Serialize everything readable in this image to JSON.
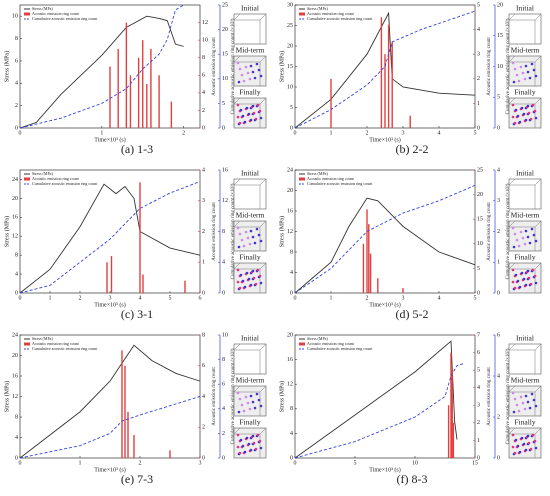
{
  "chart_data": [
    {
      "type": "line",
      "caption": "(a) 1-3",
      "xlabel": "Time×10³ (s)",
      "ylabel": "Stress (MPa)",
      "y2label": "Acoustic emission ring count",
      "y3label": "Cumulative acoustic emission ring count (×10⁵)",
      "insets": [
        "Initial",
        "Mid-term",
        "Finally"
      ],
      "xlim": [
        0,
        2.2
      ],
      "xticks": [
        0,
        1,
        2
      ],
      "ylim": [
        0,
        11
      ],
      "yticks": [
        0,
        2,
        4,
        6,
        8,
        10
      ],
      "y2lim": [
        0,
        14
      ],
      "y2ticks": [
        0,
        2,
        4,
        6,
        8,
        10,
        12
      ],
      "y3lim": [
        0,
        25
      ],
      "y3ticks": [
        0,
        5,
        10,
        15,
        20,
        25
      ],
      "series": [
        {
          "name": "Stress (MPa)",
          "color": "#333333",
          "x": [
            0,
            0.2,
            0.5,
            1,
            1.3,
            1.55,
            1.7,
            1.8,
            1.9,
            2.0
          ],
          "values": [
            0,
            0.5,
            3,
            6.5,
            9,
            10,
            9.8,
            9.6,
            7.5,
            7.3
          ]
        },
        {
          "name": "Acoustic emission ring count",
          "color": "#e04040",
          "axis": "y2",
          "bars": true,
          "x": [
            1.1,
            1.2,
            1.3,
            1.35,
            1.45,
            1.5,
            1.55,
            1.6,
            1.7,
            1.85
          ],
          "values": [
            7,
            9,
            12,
            6,
            8,
            10,
            5,
            9,
            6,
            3
          ]
        },
        {
          "name": "Cumulative acoustic emission ring count",
          "color": "#3344dd",
          "axis": "y3",
          "dashed": true,
          "x": [
            0,
            0.5,
            1,
            1.3,
            1.5,
            1.7,
            1.8,
            1.9,
            2.0
          ],
          "values": [
            0,
            2,
            5,
            8,
            12,
            15,
            18,
            24,
            25
          ]
        }
      ]
    },
    {
      "type": "line",
      "caption": "(b) 2-2",
      "xlabel": "Time×10³ (s)",
      "ylabel": "Stress (MPa)",
      "y2label": "Acoustic emission ring count",
      "y3label": "Cumulative acoustic emission ring count (×10⁵)",
      "insets": [
        "Initial",
        "Mid-term",
        "Finally"
      ],
      "xlim": [
        0,
        5
      ],
      "xticks": [
        0,
        1,
        2,
        3,
        4,
        5
      ],
      "ylim": [
        0,
        30
      ],
      "yticks": [
        0,
        5,
        10,
        15,
        20,
        25,
        30
      ],
      "y2lim": [
        0,
        5
      ],
      "y2ticks": [
        0,
        1,
        2,
        3,
        4,
        5
      ],
      "y3lim": [
        0,
        20
      ],
      "y3ticks": [
        0,
        5,
        10,
        15,
        20
      ],
      "series": [
        {
          "name": "Stress (MPa)",
          "color": "#333333",
          "x": [
            0,
            1,
            2,
            2.6,
            2.7,
            3,
            4,
            5
          ],
          "values": [
            0,
            7,
            18,
            28,
            12,
            10,
            8.5,
            8
          ]
        },
        {
          "name": "Acoustic emission ring count",
          "color": "#e04040",
          "axis": "y2",
          "bars": true,
          "x": [
            1,
            2.4,
            2.5,
            2.6,
            2.7,
            3.2
          ],
          "values": [
            2,
            4.5,
            3,
            4.2,
            3.5,
            0.5
          ]
        },
        {
          "name": "Cumulative acoustic emission ring count",
          "color": "#3344dd",
          "axis": "y3",
          "dashed": true,
          "x": [
            0,
            1,
            2,
            2.5,
            2.7,
            3.5,
            5
          ],
          "values": [
            0,
            3,
            7,
            10,
            14,
            16,
            19
          ]
        }
      ]
    },
    {
      "type": "line",
      "caption": "(c) 3-1",
      "xlabel": "Time×10³ (s)",
      "ylabel": "Stress (MPa)",
      "y2label": "Acoustic emission ring count",
      "y3label": "Cumulative acoustic emission ring count (×10⁵)",
      "insets": [
        "Initial",
        "Mid-term",
        "Finally"
      ],
      "xlim": [
        0,
        6
      ],
      "xticks": [
        0,
        1,
        2,
        3,
        4,
        5,
        6
      ],
      "ylim": [
        0,
        26
      ],
      "yticks": [
        0,
        4,
        8,
        12,
        16,
        20,
        24
      ],
      "y2lim": [
        0,
        4
      ],
      "y2ticks": [
        0,
        1,
        2,
        3,
        4
      ],
      "y3lim": [
        0,
        16
      ],
      "y3ticks": [
        0,
        4,
        8,
        12,
        16
      ],
      "series": [
        {
          "name": "Stress (MPa)",
          "color": "#333333",
          "x": [
            0,
            1,
            2,
            2.8,
            3.2,
            3.5,
            3.8,
            4,
            5,
            6
          ],
          "values": [
            0,
            5,
            14,
            23,
            21,
            22.5,
            20,
            13,
            9.5,
            8
          ]
        },
        {
          "name": "Acoustic emission ring count",
          "color": "#e04040",
          "axis": "y2",
          "bars": true,
          "x": [
            2.9,
            3.05,
            4,
            4.1,
            5.5
          ],
          "values": [
            1,
            1.2,
            3.6,
            0.6,
            0.4
          ]
        },
        {
          "name": "Cumulative acoustic emission ring count",
          "color": "#3344dd",
          "axis": "y3",
          "dashed": true,
          "x": [
            0,
            1,
            2,
            3,
            4,
            5,
            6
          ],
          "values": [
            0,
            1,
            4,
            7,
            11,
            13,
            14.5
          ]
        }
      ]
    },
    {
      "type": "line",
      "caption": "(d) 5-2",
      "xlabel": "Time×10³ (s)",
      "ylabel": "Stress (MPa)",
      "y2label": "Acoustic emission ring count",
      "y3label": "Cumulative acoustic emission ring count (×10⁵)",
      "insets": [
        "Initial",
        "Mid-term",
        "Finally"
      ],
      "xlim": [
        0,
        5
      ],
      "xticks": [
        0,
        1,
        2,
        3,
        4,
        5
      ],
      "ylim": [
        0,
        24
      ],
      "yticks": [
        0,
        4,
        8,
        12,
        16,
        20,
        24
      ],
      "y2lim": [
        0,
        25
      ],
      "y2ticks": [
        0,
        5,
        10,
        15,
        20,
        25
      ],
      "y3lim": [
        0,
        4
      ],
      "y3ticks": [
        0,
        1,
        2,
        3,
        4
      ],
      "series": [
        {
          "name": "Stress (MPa)",
          "color": "#333333",
          "x": [
            0,
            1,
            1.5,
            2,
            2.3,
            3,
            4,
            5
          ],
          "values": [
            0,
            6,
            13,
            18.5,
            18,
            13,
            8,
            5.5
          ]
        },
        {
          "name": "Acoustic emission ring count",
          "color": "#e04040",
          "axis": "y2",
          "bars": true,
          "x": [
            1.9,
            2,
            2.05,
            2.1,
            2.3,
            3
          ],
          "values": [
            10,
            17,
            14,
            8,
            3,
            1
          ]
        },
        {
          "name": "Cumulative acoustic emission ring count",
          "color": "#3344dd",
          "axis": "y3",
          "dashed": true,
          "x": [
            0,
            1,
            2,
            2.5,
            3,
            4,
            5
          ],
          "values": [
            0,
            0.8,
            2,
            2.3,
            2.6,
            3,
            3.5
          ]
        }
      ]
    },
    {
      "type": "line",
      "caption": "(e) 7-3",
      "xlabel": "Time×10³ (s)",
      "ylabel": "Stress (MPa)",
      "y2label": "Acoustic emission ring count",
      "y3label": "Cumulative acoustic emission ring count (×10⁵)",
      "insets": [
        "Initial",
        "Mid-term",
        "Finally"
      ],
      "xlim": [
        0,
        3
      ],
      "xticks": [
        0,
        1,
        2,
        3
      ],
      "ylim": [
        0,
        24
      ],
      "yticks": [
        0,
        4,
        8,
        12,
        16,
        20,
        24
      ],
      "y2lim": [
        0,
        8
      ],
      "y2ticks": [
        0,
        2,
        4,
        6,
        8
      ],
      "y3lim": [
        0,
        10
      ],
      "y3ticks": [
        0,
        2,
        4,
        6,
        8,
        10
      ],
      "series": [
        {
          "name": "Stress (MPa)",
          "color": "#333333",
          "x": [
            0,
            1,
            1.5,
            1.9,
            2.2,
            2.6,
            3
          ],
          "values": [
            0,
            9,
            15,
            22,
            19,
            16.5,
            15
          ]
        },
        {
          "name": "Acoustic emission ring count",
          "color": "#e04040",
          "axis": "y2",
          "bars": true,
          "x": [
            1.7,
            1.75,
            1.8,
            1.9,
            2.5
          ],
          "values": [
            7,
            6,
            3,
            1.5,
            0.5
          ]
        },
        {
          "name": "Cumulative acoustic emission ring count",
          "color": "#3344dd",
          "axis": "y3",
          "dashed": true,
          "x": [
            0,
            0.5,
            1,
            1.5,
            1.7,
            2,
            3
          ],
          "values": [
            0,
            0.5,
            1,
            2,
            3,
            3.5,
            5
          ]
        }
      ]
    },
    {
      "type": "line",
      "caption": "(f) 8-3",
      "xlabel": "Time×10³ (s)",
      "ylabel": "Stress (MPa)",
      "y2label": "Acoustic emission ring count",
      "y3label": "Cumulative acoustic emission ring count (×10⁵)",
      "insets": [
        "Initial",
        "Mid-term",
        "Finally"
      ],
      "xlim": [
        0,
        15
      ],
      "xticks": [
        0,
        5,
        10,
        15
      ],
      "ylim": [
        0,
        20
      ],
      "yticks": [
        0,
        4,
        8,
        12,
        16,
        20
      ],
      "y2lim": [
        0,
        7
      ],
      "y2ticks": [
        0,
        1,
        2,
        3,
        4,
        5,
        6,
        7
      ],
      "y3lim": [
        0,
        6
      ],
      "y3ticks": [
        0,
        2,
        4,
        6
      ],
      "series": [
        {
          "name": "Stress (MPa)",
          "color": "#333333",
          "x": [
            0,
            5,
            10,
            13,
            13.3,
            13.5
          ],
          "values": [
            0,
            7,
            14,
            19,
            6,
            3
          ]
        },
        {
          "name": "Acoustic emission ring count",
          "color": "#e04040",
          "axis": "y2",
          "bars": true,
          "x": [
            12.8,
            13,
            13.1,
            13.2
          ],
          "values": [
            3,
            6,
            5,
            2
          ]
        },
        {
          "name": "Cumulative acoustic emission ring count",
          "color": "#3344dd",
          "axis": "y3",
          "dashed": true,
          "x": [
            0,
            5,
            10,
            12.5,
            13,
            13.5,
            14
          ],
          "values": [
            0,
            0.8,
            2,
            3,
            4,
            4.5,
            4.6
          ]
        }
      ]
    }
  ]
}
